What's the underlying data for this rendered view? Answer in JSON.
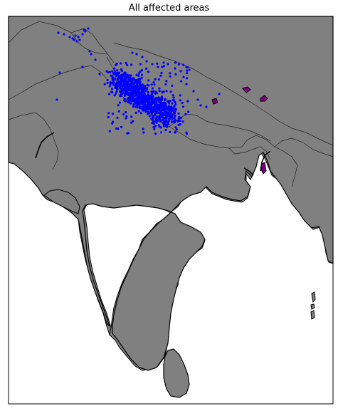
{
  "map": {
    "title": "All affected areas",
    "colors": {
      "land": "#808080",
      "water": "#ffffff",
      "border": "#222222",
      "coast": "#000000",
      "points": "#0000ff",
      "highlight": "#800080"
    },
    "point_series": "affected-points",
    "highlight_regions": 4
  }
}
